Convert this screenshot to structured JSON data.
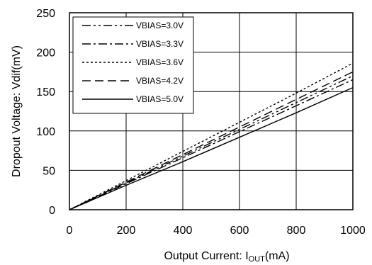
{
  "chart_data": {
    "type": "line",
    "xlabel_main": "Output Current: I",
    "xlabel_sub": "OUT",
    "xlabel_unit": "(mA)",
    "ylabel": "Dropout Voltage: Vdif(mV)",
    "xlim": [
      0,
      1000
    ],
    "ylim": [
      0,
      250
    ],
    "x_ticks": [
      "0",
      "200",
      "400",
      "600",
      "800",
      "1000"
    ],
    "y_ticks": [
      "0",
      "50",
      "100",
      "150",
      "200",
      "250"
    ],
    "grid": true,
    "legend_placement": "top-left",
    "series": [
      {
        "name": "VBIAS=3.0V",
        "dash": "12,4,3,4,3,4",
        "x": [
          0,
          200,
          400,
          600,
          800,
          1000
        ],
        "y": [
          0,
          34,
          68,
          102,
          136,
          170
        ]
      },
      {
        "name": "VBIAS=3.3V",
        "dash": "12,4,3,4",
        "x": [
          0,
          200,
          400,
          600,
          800,
          1000
        ],
        "y": [
          0,
          33,
          66,
          99,
          132,
          165
        ]
      },
      {
        "name": "VBIAS=3.6V",
        "dash": "3,3",
        "x": [
          0,
          200,
          400,
          600,
          800,
          1000
        ],
        "y": [
          0,
          37,
          74,
          111,
          148,
          186
        ]
      },
      {
        "name": "VBIAS=4.2V",
        "dash": "12,6",
        "x": [
          0,
          200,
          400,
          600,
          800,
          1000
        ],
        "y": [
          0,
          35,
          70,
          105,
          140,
          175
        ]
      },
      {
        "name": "VBIAS=5.0V",
        "dash": "",
        "x": [
          0,
          200,
          400,
          600,
          800,
          1000
        ],
        "y": [
          0,
          31,
          61,
          92,
          123,
          155
        ]
      }
    ]
  }
}
